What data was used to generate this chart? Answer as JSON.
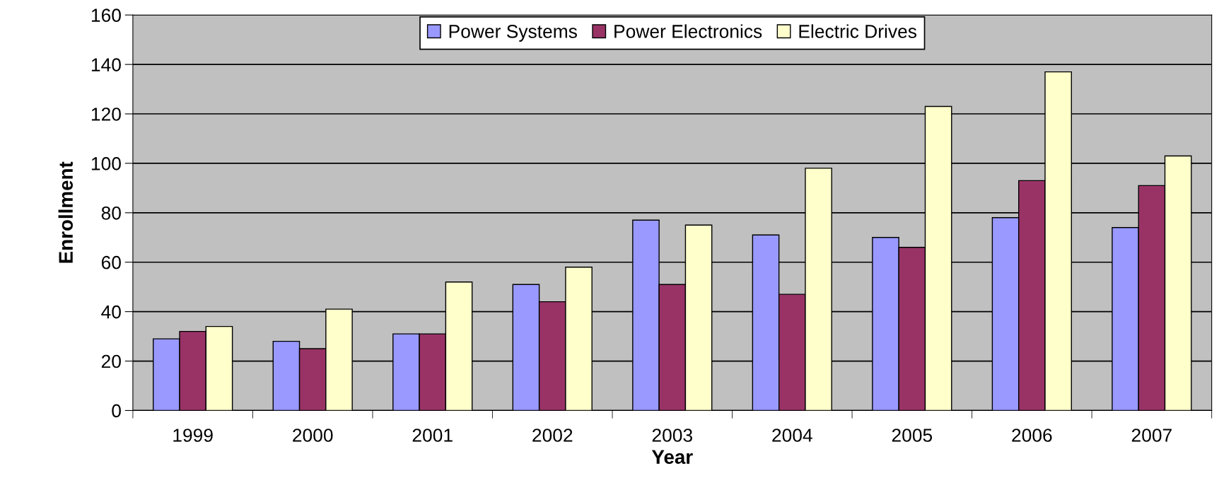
{
  "chart_data": {
    "type": "bar",
    "xlabel": "Year",
    "ylabel": "Enrollment",
    "categories": [
      "1999",
      "2000",
      "2001",
      "2002",
      "2003",
      "2004",
      "2005",
      "2006",
      "2007"
    ],
    "series": [
      {
        "name": "Power Systems",
        "color": "#9999ff",
        "values": [
          29,
          28,
          31,
          51,
          77,
          71,
          70,
          78,
          74
        ]
      },
      {
        "name": "Power Electronics",
        "color": "#993366",
        "values": [
          32,
          25,
          31,
          44,
          51,
          47,
          66,
          93,
          91
        ]
      },
      {
        "name": "Electric Drives",
        "color": "#ffffcc",
        "values": [
          34,
          41,
          52,
          58,
          75,
          98,
          123,
          137,
          103
        ]
      }
    ],
    "ylim": [
      0,
      160
    ],
    "yticks": [
      0,
      20,
      40,
      60,
      80,
      100,
      120,
      140,
      160
    ],
    "grid": "y",
    "legend": "top"
  }
}
